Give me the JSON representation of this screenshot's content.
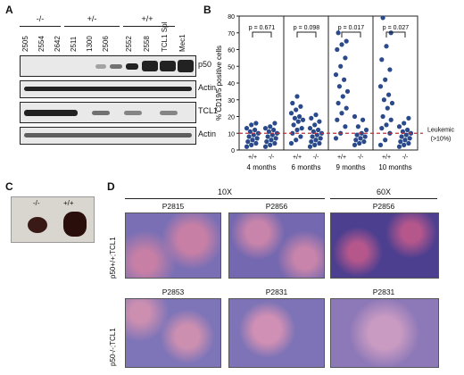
{
  "panels": {
    "A": "A",
    "B": "B",
    "C": "C",
    "D": "D"
  },
  "blot": {
    "genotype_groups": [
      "-/-",
      "+/-",
      "+/+"
    ],
    "lanes": [
      "2505",
      "2554",
      "2642",
      "2511",
      "1300",
      "2506",
      "2552",
      "2558",
      "TCL1 Spl",
      "Mec1"
    ],
    "rows": [
      "p50",
      "Actin",
      "TCL1",
      "Actin"
    ]
  },
  "chart_data": {
    "type": "scatter",
    "ylabel": "% CD19/5 positive cells",
    "ylim": [
      0,
      80
    ],
    "yticks": [
      "0",
      "10",
      "20",
      "30",
      "40",
      "50",
      "60",
      "70",
      "80"
    ],
    "group_labels": [
      "+/+",
      "-/-"
    ],
    "threshold": {
      "value": 10,
      "label": "Leukemic (>10%)"
    },
    "timepoints": [
      {
        "label": "4 months",
        "p_value": "p = 0.671",
        "wt": [
          2,
          3,
          4,
          5,
          6,
          7,
          8,
          9,
          10,
          11,
          12,
          13,
          15,
          16
        ],
        "ko": [
          2,
          3,
          4,
          5,
          6,
          7,
          8,
          9,
          10,
          11,
          12,
          13,
          14,
          16
        ]
      },
      {
        "label": "6 months",
        "p_value": "p = 0.098",
        "wt": [
          4,
          6,
          8,
          10,
          12,
          13,
          15,
          17,
          18,
          19,
          20,
          22,
          24,
          26,
          28,
          32
        ],
        "ko": [
          2,
          3,
          4,
          5,
          6,
          7,
          8,
          9,
          10,
          11,
          12,
          13,
          15,
          17,
          19,
          21
        ]
      },
      {
        "label": "9 months",
        "p_value": "p = 0.017",
        "wt": [
          7,
          10,
          14,
          18,
          22,
          25,
          28,
          32,
          35,
          38,
          42,
          45,
          50,
          55,
          60,
          63,
          65,
          70
        ],
        "ko": [
          3,
          4,
          5,
          6,
          7,
          8,
          9,
          10,
          12,
          14,
          18,
          20
        ]
      },
      {
        "label": "10 months",
        "p_value": "p = 0.027",
        "wt": [
          3,
          6,
          10,
          13,
          15,
          18,
          20,
          25,
          28,
          30,
          33,
          38,
          42,
          48,
          54,
          62,
          70,
          79
        ],
        "ko": [
          2,
          3,
          4,
          5,
          6,
          7,
          8,
          9,
          10,
          11,
          12,
          14,
          16,
          19
        ]
      }
    ],
    "colors": {
      "dot": "#2b4a8b",
      "threshold": "#c0303a"
    }
  },
  "spleen": {
    "labels": [
      "-/-",
      "+/+"
    ]
  },
  "histology": {
    "magnifications": [
      "10X",
      "60X"
    ],
    "row_labels": [
      "p50+/+;TCL1",
      "p50-/-;TCL1"
    ],
    "samples": [
      [
        "P2815",
        "P2856",
        "P2856"
      ],
      [
        "P2853",
        "P2831",
        "P2831"
      ]
    ]
  }
}
